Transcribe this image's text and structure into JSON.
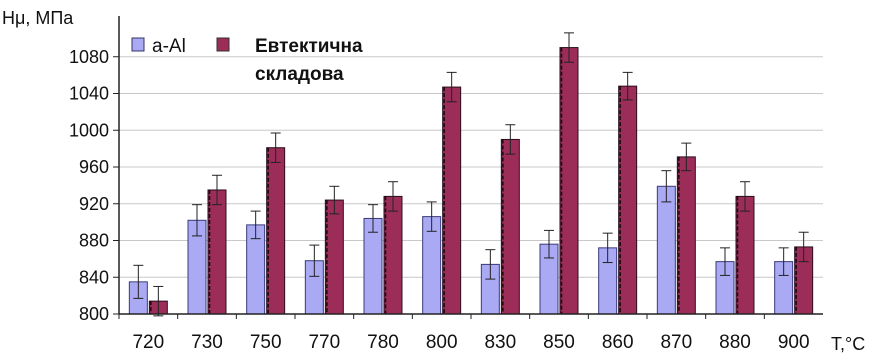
{
  "chart_data": {
    "type": "bar",
    "ylabel": "Hμ, МПа",
    "xlabel": "T,°C",
    "ylim": [
      800,
      1120
    ],
    "y_ticks": [
      800,
      840,
      880,
      920,
      960,
      1000,
      1040,
      1080
    ],
    "grid": "horizontal",
    "legend_position": "top-left",
    "categories": [
      "720",
      "730",
      "750",
      "770",
      "780",
      "800",
      "830",
      "850",
      "860",
      "870",
      "880",
      "900"
    ],
    "series": [
      {
        "name": "a-Al",
        "color": "#aaaaf4",
        "values": [
          835,
          902,
          897,
          858,
          904,
          906,
          854,
          876,
          872,
          939,
          857,
          857
        ],
        "error": [
          18,
          17,
          15,
          17,
          15,
          16,
          16,
          15,
          16,
          17,
          15,
          15
        ]
      },
      {
        "name": "Евтектична складова",
        "legend_lines": [
          "Евтектична",
          "складова"
        ],
        "color": "#9b2d58",
        "values": [
          814,
          935,
          981,
          924,
          928,
          1047,
          990,
          1090,
          1048,
          971,
          928,
          873
        ],
        "error": [
          16,
          16,
          16,
          15,
          16,
          16,
          16,
          16,
          15,
          15,
          16,
          16
        ]
      }
    ]
  }
}
